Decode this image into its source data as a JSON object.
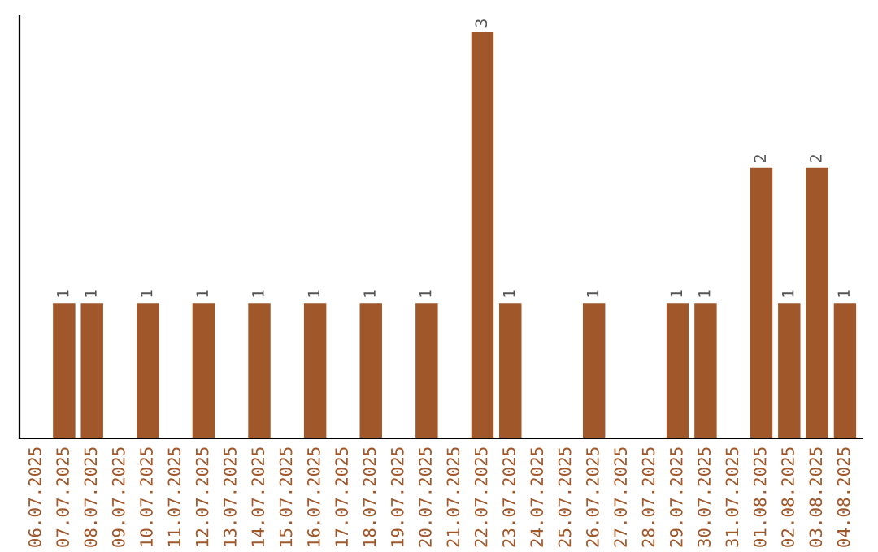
{
  "chart_data": {
    "type": "bar",
    "categories": [
      "06.07.2025",
      "07.07.2025",
      "08.07.2025",
      "09.07.2025",
      "10.07.2025",
      "11.07.2025",
      "12.07.2025",
      "13.07.2025",
      "14.07.2025",
      "15.07.2025",
      "16.07.2025",
      "17.07.2025",
      "18.07.2025",
      "19.07.2025",
      "20.07.2025",
      "21.07.2025",
      "22.07.2025",
      "23.07.2025",
      "24.07.2025",
      "25.07.2025",
      "26.07.2025",
      "27.07.2025",
      "28.07.2025",
      "29.07.2025",
      "30.07.2025",
      "31.07.2025",
      "01.08.2025",
      "02.08.2025",
      "03.08.2025",
      "04.08.2025"
    ],
    "values": [
      0,
      1,
      1,
      0,
      1,
      0,
      1,
      0,
      1,
      0,
      1,
      0,
      1,
      0,
      1,
      0,
      3,
      1,
      0,
      0,
      1,
      0,
      0,
      1,
      1,
      0,
      2,
      1,
      2,
      1
    ],
    "value_labels": [
      null,
      "1",
      "1",
      null,
      "1",
      null,
      "1",
      null,
      "1",
      null,
      "1",
      null,
      "1",
      null,
      "1",
      null,
      "3",
      "1",
      null,
      null,
      "1",
      null,
      null,
      "1",
      "1",
      null,
      "2",
      "1",
      "2",
      "1"
    ],
    "color": "#a0572a",
    "tick_labels": "x",
    "grid": false,
    "legend": false
  }
}
